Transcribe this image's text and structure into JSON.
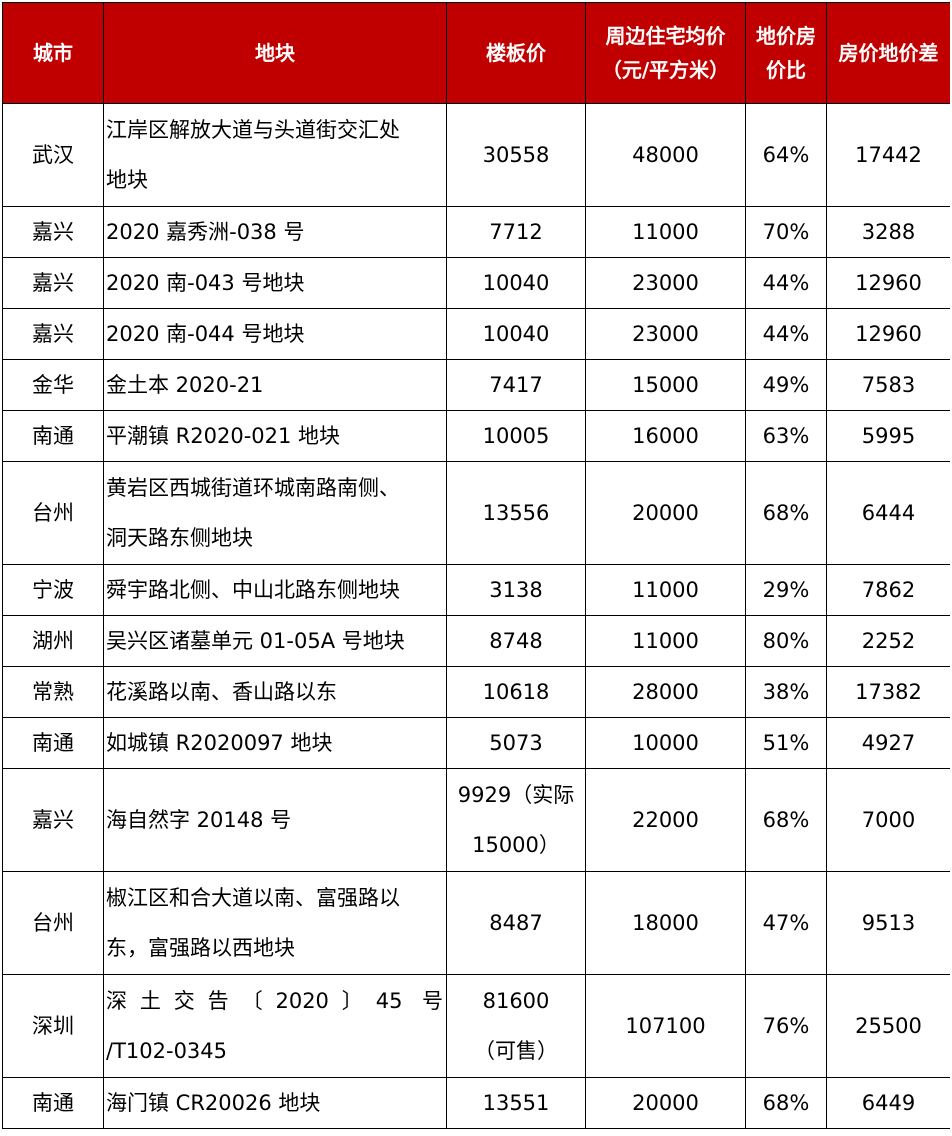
{
  "table": {
    "header": [
      "城市",
      "地块",
      "楼板价",
      [
        "周边住宅均价",
        "（元/平方米）"
      ],
      [
        "地价房",
        "价比"
      ],
      "房价地价差"
    ],
    "rows": [
      [
        "武汉",
        [
          "江岸区解放大道与头道街交汇处",
          "地块"
        ],
        "30558",
        "48000",
        "64%",
        "17442"
      ],
      [
        "嘉兴",
        "2020 嘉秀洲-038 号",
        "7712",
        "11000",
        "70%",
        "3288"
      ],
      [
        "嘉兴",
        "2020 南-043 号地块",
        "10040",
        "23000",
        "44%",
        "12960"
      ],
      [
        "嘉兴",
        "2020 南-044 号地块",
        "10040",
        "23000",
        "44%",
        "12960"
      ],
      [
        "金华",
        "金土本 2020-21",
        "7417",
        "15000",
        "49%",
        "7583"
      ],
      [
        "南通",
        "平潮镇 R2020-021 地块",
        "10005",
        "16000",
        "63%",
        "5995"
      ],
      [
        "台州",
        [
          "黄岩区西城街道环城南路南侧、",
          "洞天路东侧地块"
        ],
        "13556",
        "20000",
        "68%",
        "6444"
      ],
      [
        "宁波",
        "舜宇路北侧、中山北路东侧地块",
        "3138",
        "11000",
        "29%",
        "7862"
      ],
      [
        "湖州",
        "吴兴区诸墓单元 01-05A 号地块",
        "8748",
        "11000",
        "80%",
        "2252"
      ],
      [
        "常熟",
        "花溪路以南、香山路以东",
        "10618",
        "28000",
        "38%",
        "17382"
      ],
      [
        "南通",
        "如城镇 R2020097 地块",
        "5073",
        "10000",
        "51%",
        "4927"
      ],
      [
        "嘉兴",
        "海自然字 20148 号",
        [
          "9929（实际",
          "15000）"
        ],
        "22000",
        "68%",
        "7000"
      ],
      [
        "台州",
        [
          "椒江区和合大道以南、富强路以",
          "东，富强路以西地块"
        ],
        "8487",
        "18000",
        "47%",
        "9513"
      ],
      [
        "深圳",
        [
          "深土交告〔2020〕45 号",
          "/T102-0345"
        ],
        [
          "81600",
          "（可售）"
        ],
        "107100",
        "76%",
        "25500"
      ],
      [
        "南通",
        "海门镇 CR20026 地块",
        "13551",
        "20000",
        "68%",
        "6449"
      ]
    ]
  }
}
